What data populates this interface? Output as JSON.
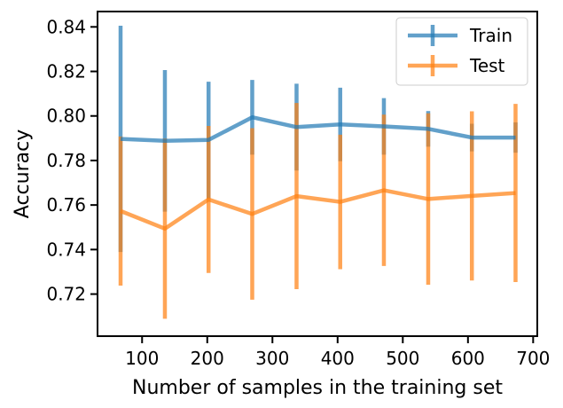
{
  "chart_data": {
    "type": "line",
    "title": "",
    "xlabel": "Number of samples in the training set",
    "ylabel": "Accuracy",
    "xlim": [
      33,
      705
    ],
    "ylim": [
      0.7015,
      0.8465
    ],
    "xticks": [
      100,
      200,
      300,
      400,
      500,
      600,
      700
    ],
    "yticks": [
      0.72,
      0.74,
      0.76,
      0.78,
      0.8,
      0.82,
      0.84
    ],
    "grid": false,
    "legend_position": "top-right",
    "x": [
      67,
      135,
      202,
      269,
      337,
      404,
      471,
      539,
      606,
      673
    ],
    "series": [
      {
        "name": "Train",
        "color": "#1f77b4",
        "values": [
          0.7897,
          0.7888,
          0.7892,
          0.7994,
          0.795,
          0.7962,
          0.7953,
          0.7942,
          0.7903,
          0.7903
        ],
        "errors": [
          0.0508,
          0.0318,
          0.0262,
          0.0168,
          0.0195,
          0.0165,
          0.0127,
          0.008,
          0.0062,
          0.0068
        ]
      },
      {
        "name": "Test",
        "color": "#ff7f0e",
        "values": [
          0.7573,
          0.7494,
          0.7625,
          0.756,
          0.764,
          0.7614,
          0.7666,
          0.7627,
          0.7641,
          0.7654
        ],
        "errors": [
          0.0335,
          0.0405,
          0.033,
          0.0385,
          0.0418,
          0.0302,
          0.034,
          0.0385,
          0.038,
          0.04
        ]
      }
    ]
  }
}
